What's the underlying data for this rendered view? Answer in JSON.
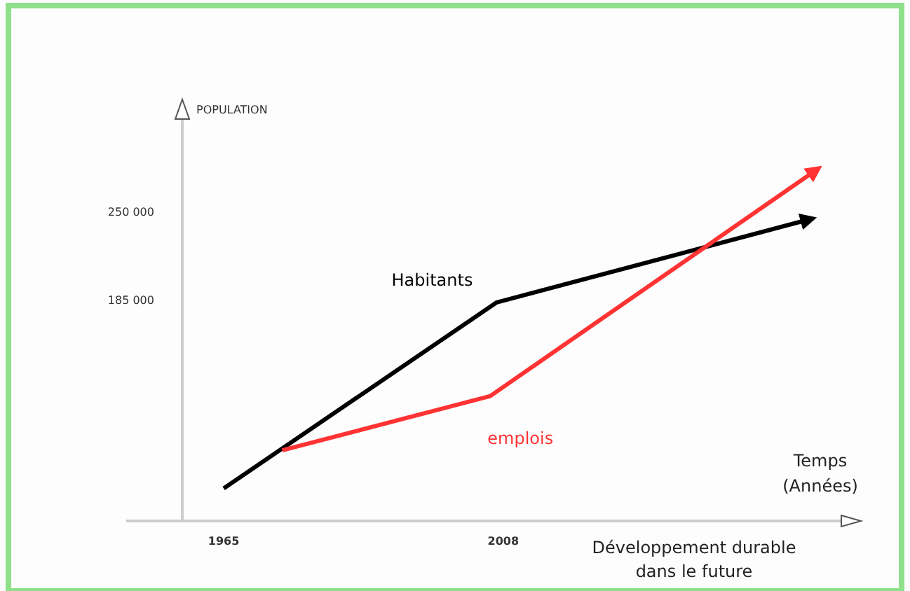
{
  "chart_data": {
    "type": "line",
    "ylabel": "POPULATION",
    "xlabel": "Temps (Années)",
    "annotations": [
      "Développement durable dans le future"
    ],
    "xlim": [
      1950,
      2060
    ],
    "xticks": [
      1965,
      2008
    ],
    "ylim": [
      22000,
      318000
    ],
    "yticks": [
      {
        "value": 185000,
        "label": "185 000"
      },
      {
        "value": 250000,
        "label": "250 000"
      }
    ],
    "series": [
      {
        "name": "Habitants",
        "color": "#000000",
        "x": [
          1965,
          2007,
          2055
        ],
        "values": [
          46000,
          183000,
          244000
        ]
      },
      {
        "name": "emplois",
        "color": "#ff3333",
        "x": [
          1974,
          2006,
          2056
        ],
        "values": [
          74000,
          114000,
          280000
        ]
      }
    ],
    "marker": "none",
    "line_style": "solid",
    "grid": false
  }
}
